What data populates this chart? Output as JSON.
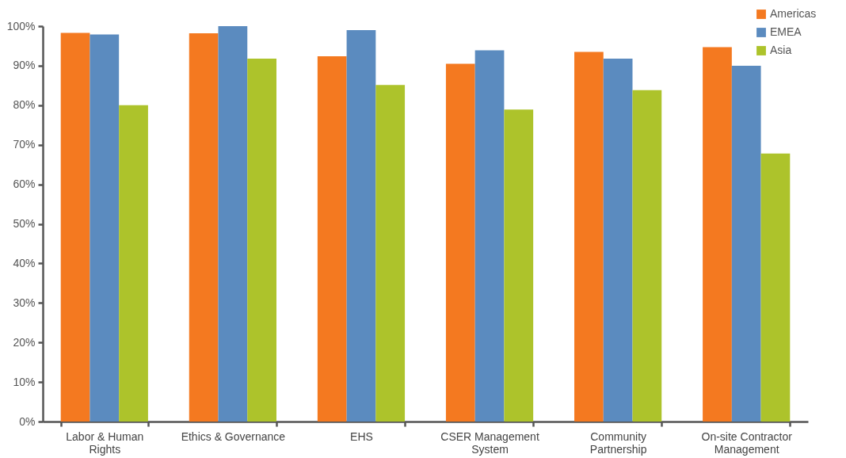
{
  "chart_data": {
    "type": "bar",
    "categories": [
      "Labor & Human Rights",
      "Ethics & Governance",
      "EHS",
      "CSER Management System",
      "Community Partnership",
      "On-site Contractor Management"
    ],
    "series": [
      {
        "name": "Americas",
        "color": "#f47920",
        "values": [
          98.3,
          98.2,
          92.4,
          90.5,
          93.5,
          94.7
        ]
      },
      {
        "name": "EMEA",
        "color": "#5b8bbf",
        "values": [
          97.9,
          100,
          99.0,
          93.9,
          91.8,
          90.0
        ]
      },
      {
        "name": "Asia",
        "color": "#adc32b",
        "values": [
          80.0,
          91.8,
          85.1,
          78.9,
          83.8,
          67.8
        ]
      }
    ],
    "ylim": [
      0,
      100
    ],
    "yticks": [
      {
        "value": 0,
        "label": "0%"
      },
      {
        "value": 10,
        "label": "10%"
      },
      {
        "value": 20,
        "label": "20%"
      },
      {
        "value": 30,
        "label": "30%"
      },
      {
        "value": 40,
        "label": "40%"
      },
      {
        "value": 50,
        "label": "50%"
      },
      {
        "value": 60,
        "label": "60%"
      },
      {
        "value": 70,
        "label": "70%"
      },
      {
        "value": 80,
        "label": "80%"
      },
      {
        "value": 90,
        "label": "90%"
      },
      {
        "value": 100,
        "label": "100%"
      }
    ],
    "grid": false,
    "legend": "top right"
  }
}
